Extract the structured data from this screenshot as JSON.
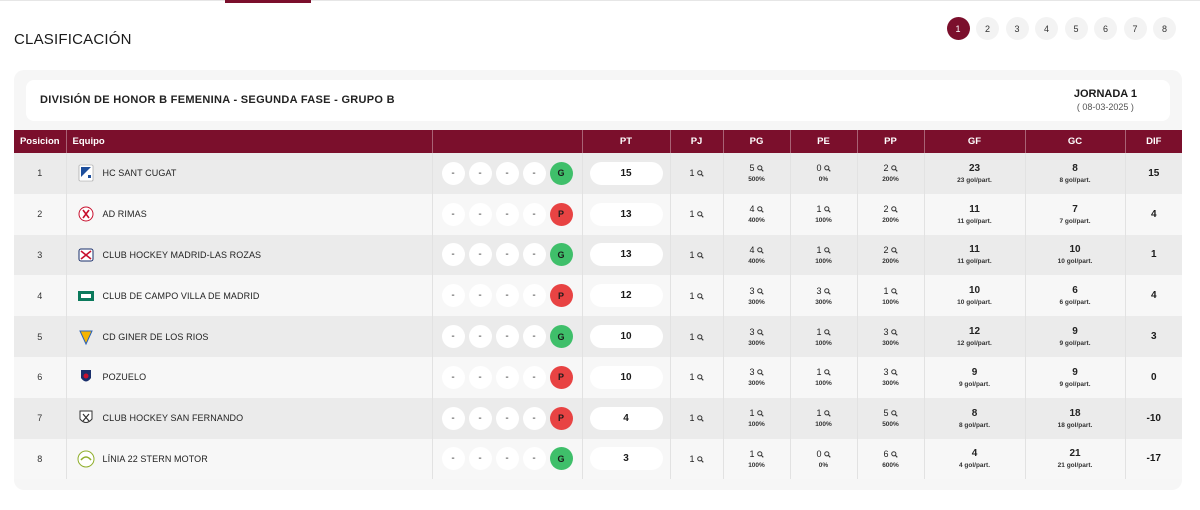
{
  "page": {
    "title": "CLASIFICACIÓN",
    "rounds": [
      "1",
      "2",
      "3",
      "4",
      "5",
      "6",
      "7",
      "8"
    ],
    "active_round": "1"
  },
  "competition": {
    "name": "DIVISIÓN DE HONOR B FEMENINA - SEGUNDA FASE - GRUPO B",
    "jornada": "JORNADA 1",
    "date": "( 08-03-2025 )"
  },
  "table": {
    "headers": {
      "pos": "Posicion",
      "team": "Equipo",
      "form": "",
      "pt": "PT",
      "pj": "PJ",
      "pg": "PG",
      "pe": "PE",
      "pp": "PP",
      "gf": "GF",
      "gc": "GC",
      "dif": "DIF"
    },
    "rows": [
      {
        "pos": "1",
        "team": "HC SANT CUGAT",
        "logo": "sant-cugat-logo",
        "form": [
          "-",
          "-",
          "-",
          "-",
          "G"
        ],
        "pt": "15",
        "pj": "1",
        "pg": "5",
        "pg_pct": "500%",
        "pe": "0",
        "pe_pct": "0%",
        "pp": "2",
        "pp_pct": "200%",
        "gf": "23",
        "gf_avg": "23 gol/part.",
        "gc": "8",
        "gc_avg": "8 gol/part.",
        "dif": "15"
      },
      {
        "pos": "2",
        "team": "AD RIMAS",
        "logo": "rimas-logo",
        "form": [
          "-",
          "-",
          "-",
          "-",
          "P"
        ],
        "pt": "13",
        "pj": "1",
        "pg": "4",
        "pg_pct": "400%",
        "pe": "1",
        "pe_pct": "100%",
        "pp": "2",
        "pp_pct": "200%",
        "gf": "11",
        "gf_avg": "11 gol/part.",
        "gc": "7",
        "gc_avg": "7 gol/part.",
        "dif": "4"
      },
      {
        "pos": "3",
        "team": "CLUB HOCKEY MADRID-LAS ROZAS",
        "logo": "las-rozas-logo",
        "form": [
          "-",
          "-",
          "-",
          "-",
          "G"
        ],
        "pt": "13",
        "pj": "1",
        "pg": "4",
        "pg_pct": "400%",
        "pe": "1",
        "pe_pct": "100%",
        "pp": "2",
        "pp_pct": "200%",
        "gf": "11",
        "gf_avg": "11 gol/part.",
        "gc": "10",
        "gc_avg": "10 gol/part.",
        "dif": "1"
      },
      {
        "pos": "4",
        "team": "CLUB DE CAMPO VILLA DE MADRID",
        "logo": "club-de-campo-logo",
        "form": [
          "-",
          "-",
          "-",
          "-",
          "P"
        ],
        "pt": "12",
        "pj": "1",
        "pg": "3",
        "pg_pct": "300%",
        "pe": "3",
        "pe_pct": "300%",
        "pp": "1",
        "pp_pct": "100%",
        "gf": "10",
        "gf_avg": "10 gol/part.",
        "gc": "6",
        "gc_avg": "6 gol/part.",
        "dif": "4"
      },
      {
        "pos": "5",
        "team": "CD GINER DE LOS RIOS",
        "logo": "giner-logo",
        "form": [
          "-",
          "-",
          "-",
          "-",
          "G"
        ],
        "pt": "10",
        "pj": "1",
        "pg": "3",
        "pg_pct": "300%",
        "pe": "1",
        "pe_pct": "100%",
        "pp": "3",
        "pp_pct": "300%",
        "gf": "12",
        "gf_avg": "12 gol/part.",
        "gc": "9",
        "gc_avg": "9 gol/part.",
        "dif": "3"
      },
      {
        "pos": "6",
        "team": "POZUELO",
        "logo": "pozuelo-logo",
        "form": [
          "-",
          "-",
          "-",
          "-",
          "P"
        ],
        "pt": "10",
        "pj": "1",
        "pg": "3",
        "pg_pct": "300%",
        "pe": "1",
        "pe_pct": "100%",
        "pp": "3",
        "pp_pct": "300%",
        "gf": "9",
        "gf_avg": "9 gol/part.",
        "gc": "9",
        "gc_avg": "9 gol/part.",
        "dif": "0"
      },
      {
        "pos": "7",
        "team": "CLUB HOCKEY SAN FERNANDO",
        "logo": "san-fernando-logo",
        "form": [
          "-",
          "-",
          "-",
          "-",
          "P"
        ],
        "pt": "4",
        "pj": "1",
        "pg": "1",
        "pg_pct": "100%",
        "pe": "1",
        "pe_pct": "100%",
        "pp": "5",
        "pp_pct": "500%",
        "gf": "8",
        "gf_avg": "8 gol/part.",
        "gc": "18",
        "gc_avg": "18 gol/part.",
        "dif": "-10"
      },
      {
        "pos": "8",
        "team": "LÍNIA 22 STERN MOTOR",
        "logo": "linia-22-logo",
        "form": [
          "-",
          "-",
          "-",
          "-",
          "G"
        ],
        "pt": "3",
        "pj": "1",
        "pg": "1",
        "pg_pct": "100%",
        "pe": "0",
        "pe_pct": "0%",
        "pp": "6",
        "pp_pct": "600%",
        "gf": "4",
        "gf_avg": "4 gol/part.",
        "gc": "21",
        "gc_avg": "21 gol/part.",
        "dif": "-17"
      }
    ]
  },
  "colors": {
    "accent": "#7b0f2c",
    "win": "#3fbf6a",
    "loss": "#e84343"
  }
}
